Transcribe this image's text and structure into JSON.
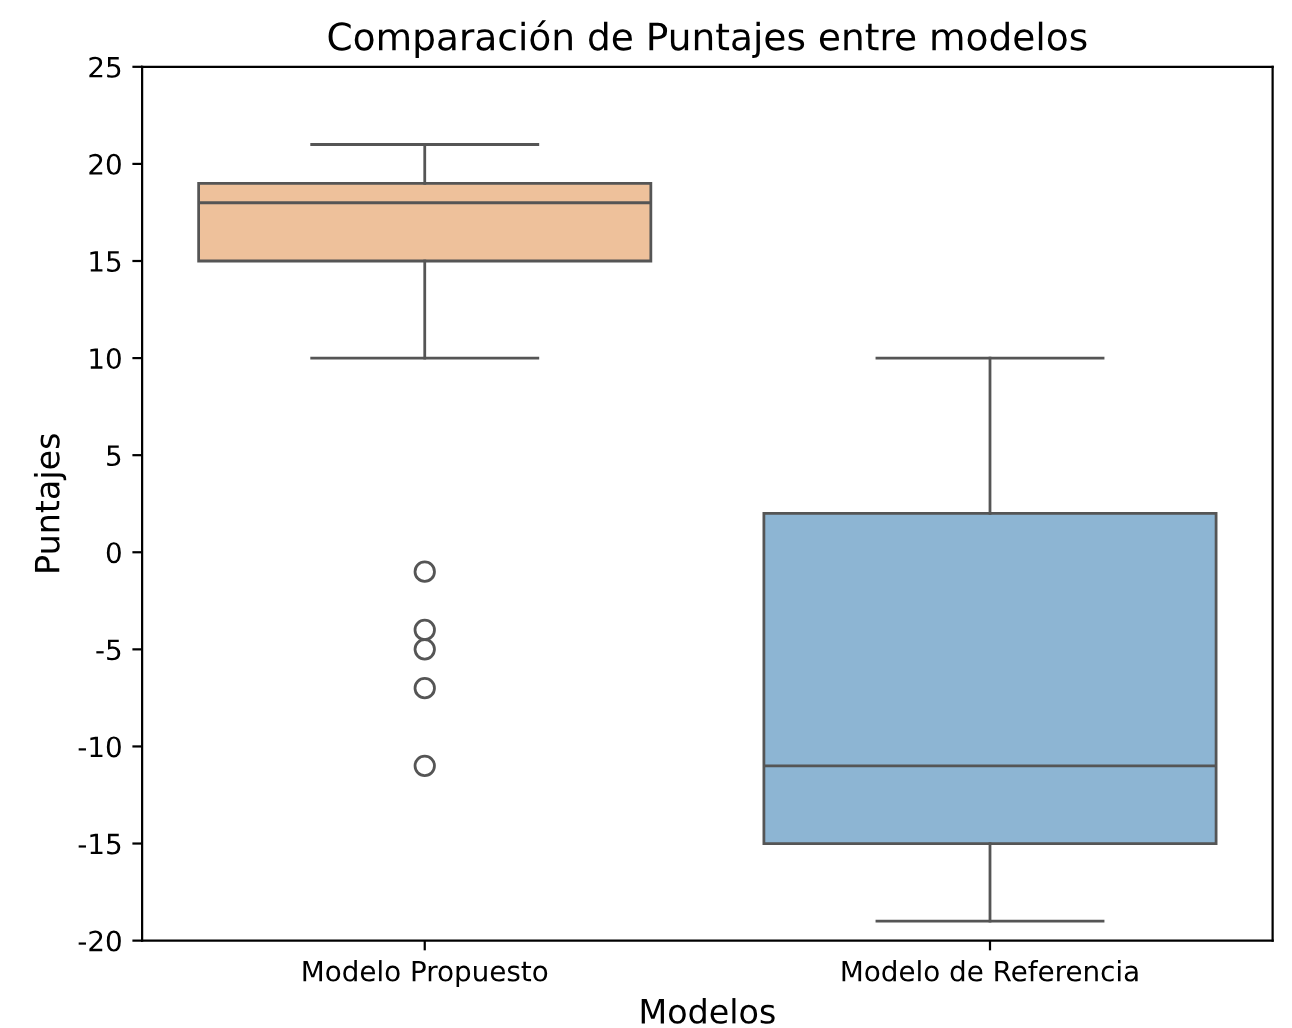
{
  "chart_data": {
    "type": "box",
    "title": "Comparación de Puntajes entre modelos",
    "xlabel": "Modelos",
    "ylabel": "Puntajes",
    "categories": [
      "Modelo Propuesto",
      "Modelo de Referencia"
    ],
    "series": [
      {
        "colors": [
          "#eec19b",
          "#8db5d3"
        ],
        "boxes": [
          {
            "low": 10,
            "q1": 15,
            "median": 18,
            "q3": 19,
            "high": 21,
            "outliers": [
              -1,
              -4,
              -5,
              -7,
              -11
            ]
          },
          {
            "low": -19,
            "q1": -15,
            "median": -11,
            "q3": 2,
            "high": 10
          }
        ]
      }
    ],
    "ylim": [
      -20,
      25
    ],
    "yticks": [
      -20,
      -15,
      -10,
      -5,
      0,
      5,
      10,
      15,
      20,
      25
    ],
    "grid": false,
    "legend": false
  }
}
